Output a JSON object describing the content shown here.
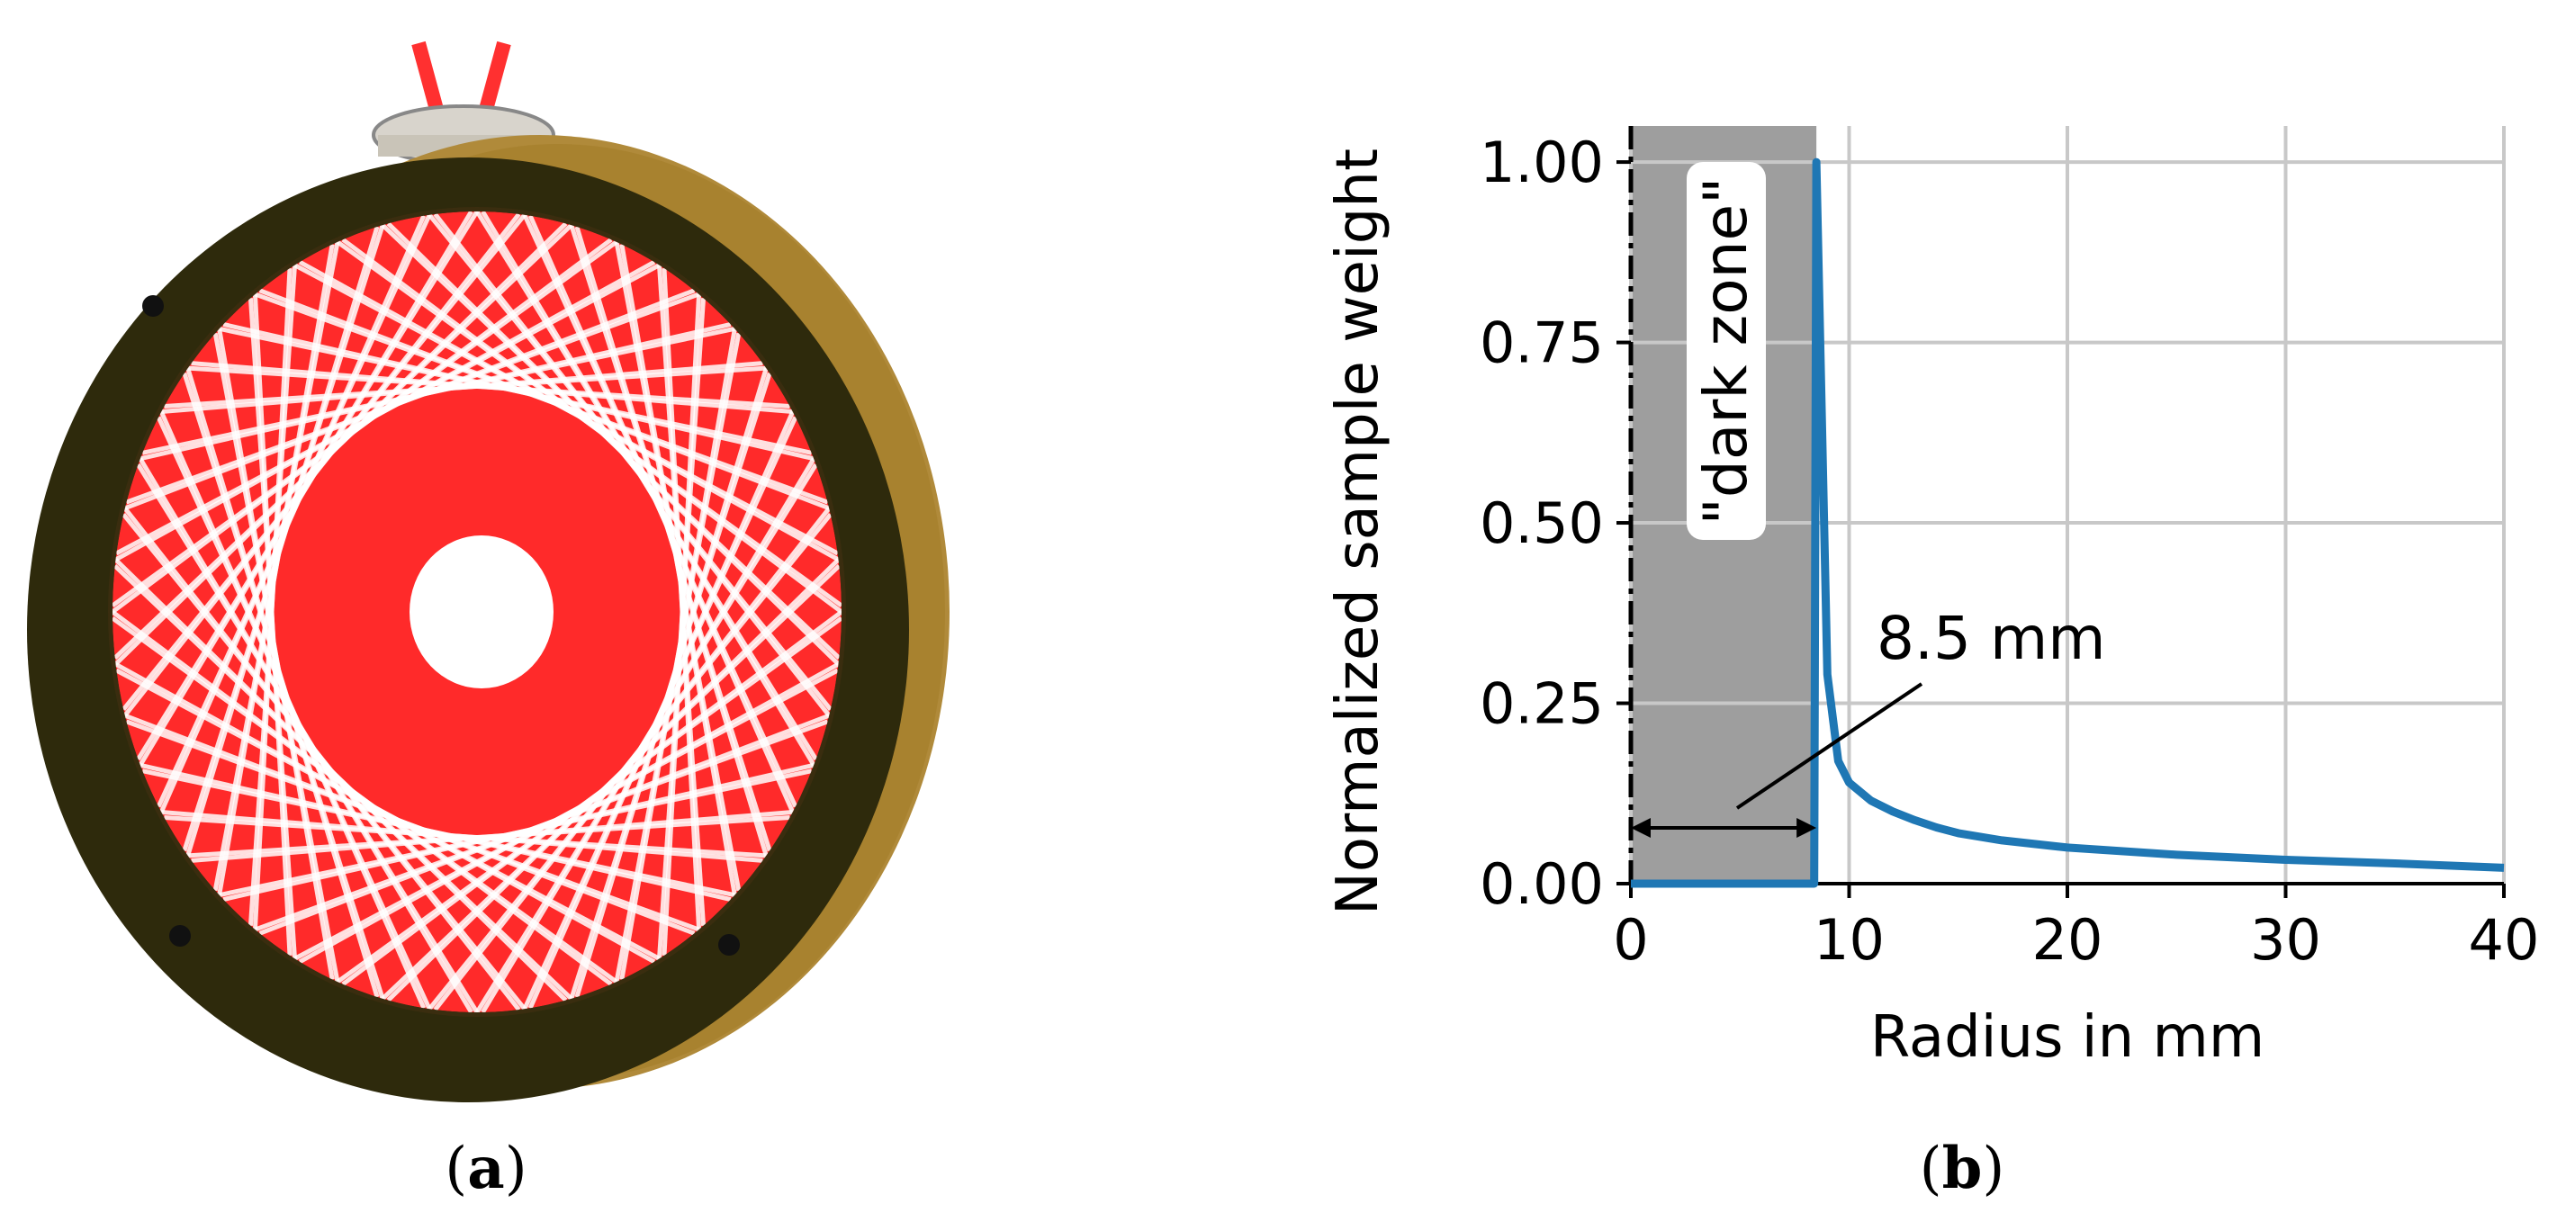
{
  "panels": {
    "a_label": "a",
    "b_label": "b"
  },
  "colors": {
    "ring_face": "#2e2a0c",
    "ring_side": "#b08a3a",
    "laser": "#ff2a2a",
    "curve": "#1f77b4",
    "dark_zone": "#9e9e9e"
  },
  "chart_data": {
    "type": "line",
    "title": "",
    "xlabel": "Radius in mm",
    "ylabel": "Normalized sample weight",
    "xlim": [
      0,
      40
    ],
    "ylim": [
      0,
      1.05
    ],
    "xticks": [
      "0",
      "10",
      "20",
      "30",
      "40"
    ],
    "yticks": [
      "0.00",
      "0.25",
      "0.50",
      "0.75",
      "1.00"
    ],
    "grid": true,
    "dark_zone": {
      "x_range": [
        0,
        8.5
      ],
      "label": "\"dark zone\""
    },
    "annotation": {
      "text": "8.5 mm"
    },
    "series": [
      {
        "x": [
          0,
          8.4,
          8.5,
          9.0,
          9.5,
          10,
          11,
          12,
          13,
          14,
          15,
          17,
          20,
          25,
          30,
          35,
          40
        ],
        "y": [
          0,
          0,
          1.0,
          0.29,
          0.17,
          0.14,
          0.115,
          0.1,
          0.088,
          0.078,
          0.07,
          0.06,
          0.05,
          0.04,
          0.033,
          0.028,
          0.022
        ]
      }
    ]
  }
}
